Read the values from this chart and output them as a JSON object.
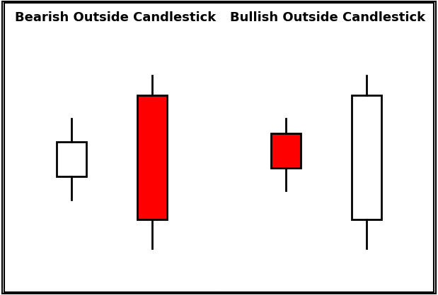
{
  "background_color": "#ffffff",
  "border_color": "#000000",
  "title_bearish": "Bearish Outside Candlestick",
  "title_bullish": "Bullish Outside Candlestick",
  "title_fontsize": 13,
  "title_fontweight": "bold",
  "candle_linewidth": 2.0,
  "fig_linewidth": 1.5,
  "panels": [
    {
      "name": "bearish",
      "candles": [
        {
          "x": 2.5,
          "open": 5.2,
          "close": 4.0,
          "high": 6.0,
          "low": 3.2,
          "color": "white",
          "edge_color": "#000000"
        },
        {
          "x": 5.5,
          "open": 6.8,
          "close": 2.5,
          "high": 7.5,
          "low": 1.5,
          "color": "red",
          "edge_color": "#000000"
        }
      ],
      "ylim": [
        0,
        10
      ],
      "xlim": [
        0,
        8
      ]
    },
    {
      "name": "bullish",
      "candles": [
        {
          "x": 2.5,
          "open": 5.5,
          "close": 4.3,
          "high": 6.0,
          "low": 3.5,
          "color": "red",
          "edge_color": "#000000"
        },
        {
          "x": 5.5,
          "open": 2.5,
          "close": 6.8,
          "high": 7.5,
          "low": 1.5,
          "color": "white",
          "edge_color": "#000000"
        }
      ],
      "ylim": [
        0,
        10
      ],
      "xlim": [
        0,
        8
      ]
    }
  ]
}
